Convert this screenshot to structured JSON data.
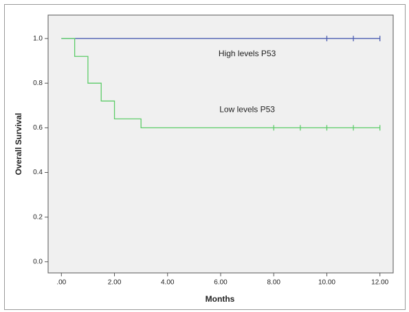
{
  "chart_data": {
    "type": "step",
    "xlabel": "Months",
    "ylabel": "Overall Survival",
    "series": [
      {
        "name": "High levels P53",
        "color": "#4a5cb0",
        "x": [
          0,
          12
        ],
        "values": [
          1.0,
          1.0
        ],
        "censored_x": [
          10,
          11,
          12
        ],
        "censored_values": [
          1.0,
          1.0,
          1.0
        ]
      },
      {
        "name": "Low levels P53",
        "color": "#5ccc68",
        "x": [
          0,
          0.5,
          1,
          1.5,
          2,
          3,
          12
        ],
        "values": [
          1.0,
          0.92,
          0.8,
          0.72,
          0.64,
          0.6,
          0.6
        ],
        "censored_x": [
          8,
          9,
          10,
          11,
          12
        ],
        "censored_values": [
          0.6,
          0.6,
          0.6,
          0.6,
          0.6
        ]
      }
    ],
    "annotations": [
      {
        "series": 0,
        "x": 7,
        "y": 0.93
      },
      {
        "series": 1,
        "x": 7,
        "y": 0.68
      }
    ],
    "xlim": [
      -0.5,
      12.5
    ],
    "ylim": [
      -0.05,
      1.105
    ],
    "xticks": [
      {
        "value": 0,
        "label": ".00"
      },
      {
        "value": 2,
        "label": "2.00"
      },
      {
        "value": 4,
        "label": "4.00"
      },
      {
        "value": 6,
        "label": "6.00"
      },
      {
        "value": 8,
        "label": "8.00"
      },
      {
        "value": 10,
        "label": "10.00"
      },
      {
        "value": 12,
        "label": "12.00"
      }
    ],
    "yticks": [
      {
        "value": 0,
        "label": "0.0"
      },
      0.2,
      0.4,
      0.6,
      0.8,
      {
        "value": 1,
        "label": "1.0"
      }
    ]
  }
}
